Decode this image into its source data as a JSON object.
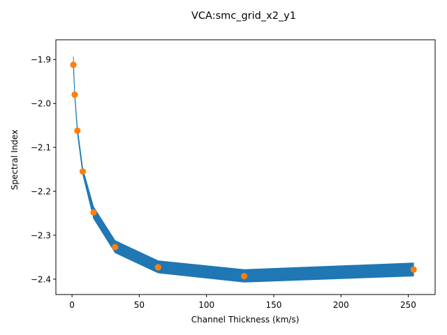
{
  "chart_data": {
    "type": "line",
    "title": "VCA:smc_grid_x2_y1",
    "xlabel": "Channel Thickness (km/s)",
    "ylabel": "Spectral Index",
    "xlim": [
      -12,
      270
    ],
    "ylim": [
      -2.435,
      -1.855
    ],
    "xticks": [
      0,
      50,
      100,
      150,
      200,
      250
    ],
    "xtick_labels": [
      "0",
      "50",
      "100",
      "150",
      "200",
      "250"
    ],
    "yticks": [
      -2.4,
      -2.3,
      -2.2,
      -2.1,
      -2.0,
      -1.9
    ],
    "ytick_labels": [
      "−2.4",
      "−2.3",
      "−2.2",
      "−2.1",
      "−2.0",
      "−1.9"
    ],
    "grid": false,
    "series": [
      {
        "kind": "band",
        "color": "#1f77b4",
        "x": [
          1,
          2,
          4,
          8,
          16,
          32,
          64,
          128,
          254
        ],
        "upper": [
          -1.893,
          -1.975,
          -2.055,
          -2.148,
          -2.235,
          -2.312,
          -2.358,
          -2.378,
          -2.363
        ],
        "lower": [
          -1.915,
          -1.985,
          -2.068,
          -2.162,
          -2.262,
          -2.34,
          -2.386,
          -2.407,
          -2.393
        ]
      },
      {
        "kind": "points",
        "color": "#ff7f0e",
        "x": [
          1,
          2,
          4,
          8,
          16,
          32,
          64,
          128,
          254
        ],
        "y": [
          -1.912,
          -1.98,
          -2.062,
          -2.155,
          -2.248,
          -2.327,
          -2.373,
          -2.393,
          -2.378
        ]
      }
    ]
  }
}
